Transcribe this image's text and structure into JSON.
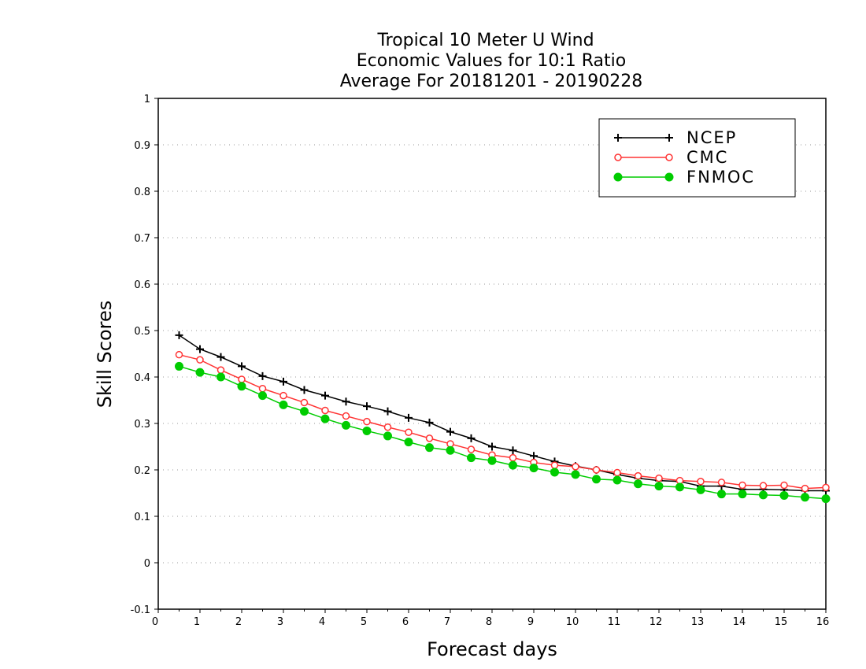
{
  "chart_data": {
    "type": "line",
    "title_lines": [
      "Tropical 10 Meter U Wind",
      "Economic Values for 10:1 Ratio",
      "Average For 20181201 - 20190228"
    ],
    "xlabel": "Forecast days",
    "ylabel": "Skill Scores",
    "xlim": [
      0,
      16
    ],
    "ylim": [
      -0.1,
      1
    ],
    "xticks": [
      0,
      1,
      2,
      3,
      4,
      5,
      6,
      7,
      8,
      9,
      10,
      11,
      12,
      13,
      14,
      15,
      16
    ],
    "yticks": [
      -0.1,
      0,
      0.1,
      0.2,
      0.3,
      0.4,
      0.5,
      0.6,
      0.7,
      0.8,
      0.9,
      1
    ],
    "ytick_labels": [
      "-0.1",
      "0",
      "0.1",
      "0.2",
      "0.3",
      "0.4",
      "0.5",
      "0.6",
      "0.7",
      "0.8",
      "0.9",
      "1"
    ],
    "grid": "horizontal dotted",
    "legend_position": "top-right",
    "x": [
      0.5,
      1,
      1.5,
      2,
      2.5,
      3,
      3.5,
      4,
      4.5,
      5,
      5.5,
      6,
      6.5,
      7,
      7.5,
      8,
      8.5,
      9,
      9.5,
      10,
      10.5,
      11,
      11.5,
      12,
      12.5,
      13,
      13.5,
      14,
      14.5,
      15,
      15.5,
      16
    ],
    "series": [
      {
        "name": "NCEP",
        "color": "#000000",
        "marker": "plus",
        "values": [
          0.49,
          0.46,
          0.443,
          0.423,
          0.402,
          0.39,
          0.372,
          0.36,
          0.347,
          0.337,
          0.326,
          0.312,
          0.302,
          0.282,
          0.268,
          0.25,
          0.242,
          0.23,
          0.218,
          0.208,
          0.2,
          0.19,
          0.182,
          0.177,
          0.175,
          0.165,
          0.165,
          0.158,
          0.158,
          0.157,
          0.155,
          0.155
        ]
      },
      {
        "name": "CMC",
        "color": "#ff3333",
        "marker": "open-circle",
        "values": [
          0.448,
          0.437,
          0.415,
          0.395,
          0.375,
          0.36,
          0.345,
          0.328,
          0.316,
          0.304,
          0.292,
          0.281,
          0.268,
          0.256,
          0.244,
          0.232,
          0.226,
          0.216,
          0.21,
          0.207,
          0.2,
          0.194,
          0.187,
          0.182,
          0.177,
          0.175,
          0.173,
          0.167,
          0.166,
          0.167,
          0.16,
          0.162
        ]
      },
      {
        "name": "FNMOC",
        "color": "#00cc00",
        "marker": "filled-circle",
        "values": [
          0.423,
          0.41,
          0.4,
          0.38,
          0.36,
          0.34,
          0.326,
          0.31,
          0.296,
          0.284,
          0.273,
          0.26,
          0.248,
          0.242,
          0.226,
          0.22,
          0.21,
          0.204,
          0.195,
          0.19,
          0.18,
          0.178,
          0.17,
          0.165,
          0.163,
          0.157,
          0.148,
          0.148,
          0.146,
          0.145,
          0.141,
          0.138
        ]
      }
    ]
  }
}
